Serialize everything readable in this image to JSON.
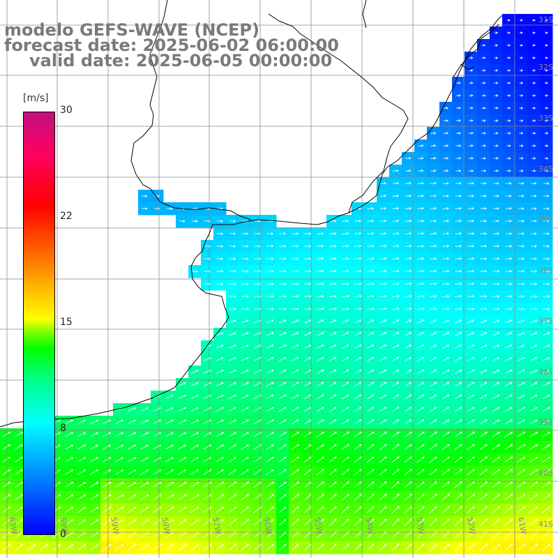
{
  "title": {
    "line1": "modelo GEFS-WAVE (NCEP)",
    "line2": "forecast date: 2025-06-02 06:00:00",
    "line3": "valid date: 2025-06-05 00:00:00"
  },
  "colorbar": {
    "units": "[m/s]",
    "ticks": [
      "30",
      "22",
      "15",
      "8",
      "0"
    ],
    "min": 0,
    "max": 30,
    "stops": [
      "#0000ff",
      "#0080ff",
      "#00ffff",
      "#00ff80",
      "#00ff00",
      "#80ff00",
      "#ffff00",
      "#ff8000",
      "#ff0000",
      "#c01080"
    ]
  },
  "lat_labels": [
    "31S",
    "32S",
    "33S",
    "34S",
    "35S",
    "36S",
    "37S",
    "38S",
    "39S",
    "40S",
    "41S"
  ],
  "lon_labels": [
    "63W",
    "59W",
    "58W",
    "57W",
    "56W",
    "55W",
    "54W",
    "53W",
    "52W",
    "61W"
  ],
  "colors": {
    "land": "#ffffff",
    "coast": "#000000",
    "grid": "#8a8a8a",
    "arrows": "#ffffff",
    "title": "#7a7a7a"
  }
}
